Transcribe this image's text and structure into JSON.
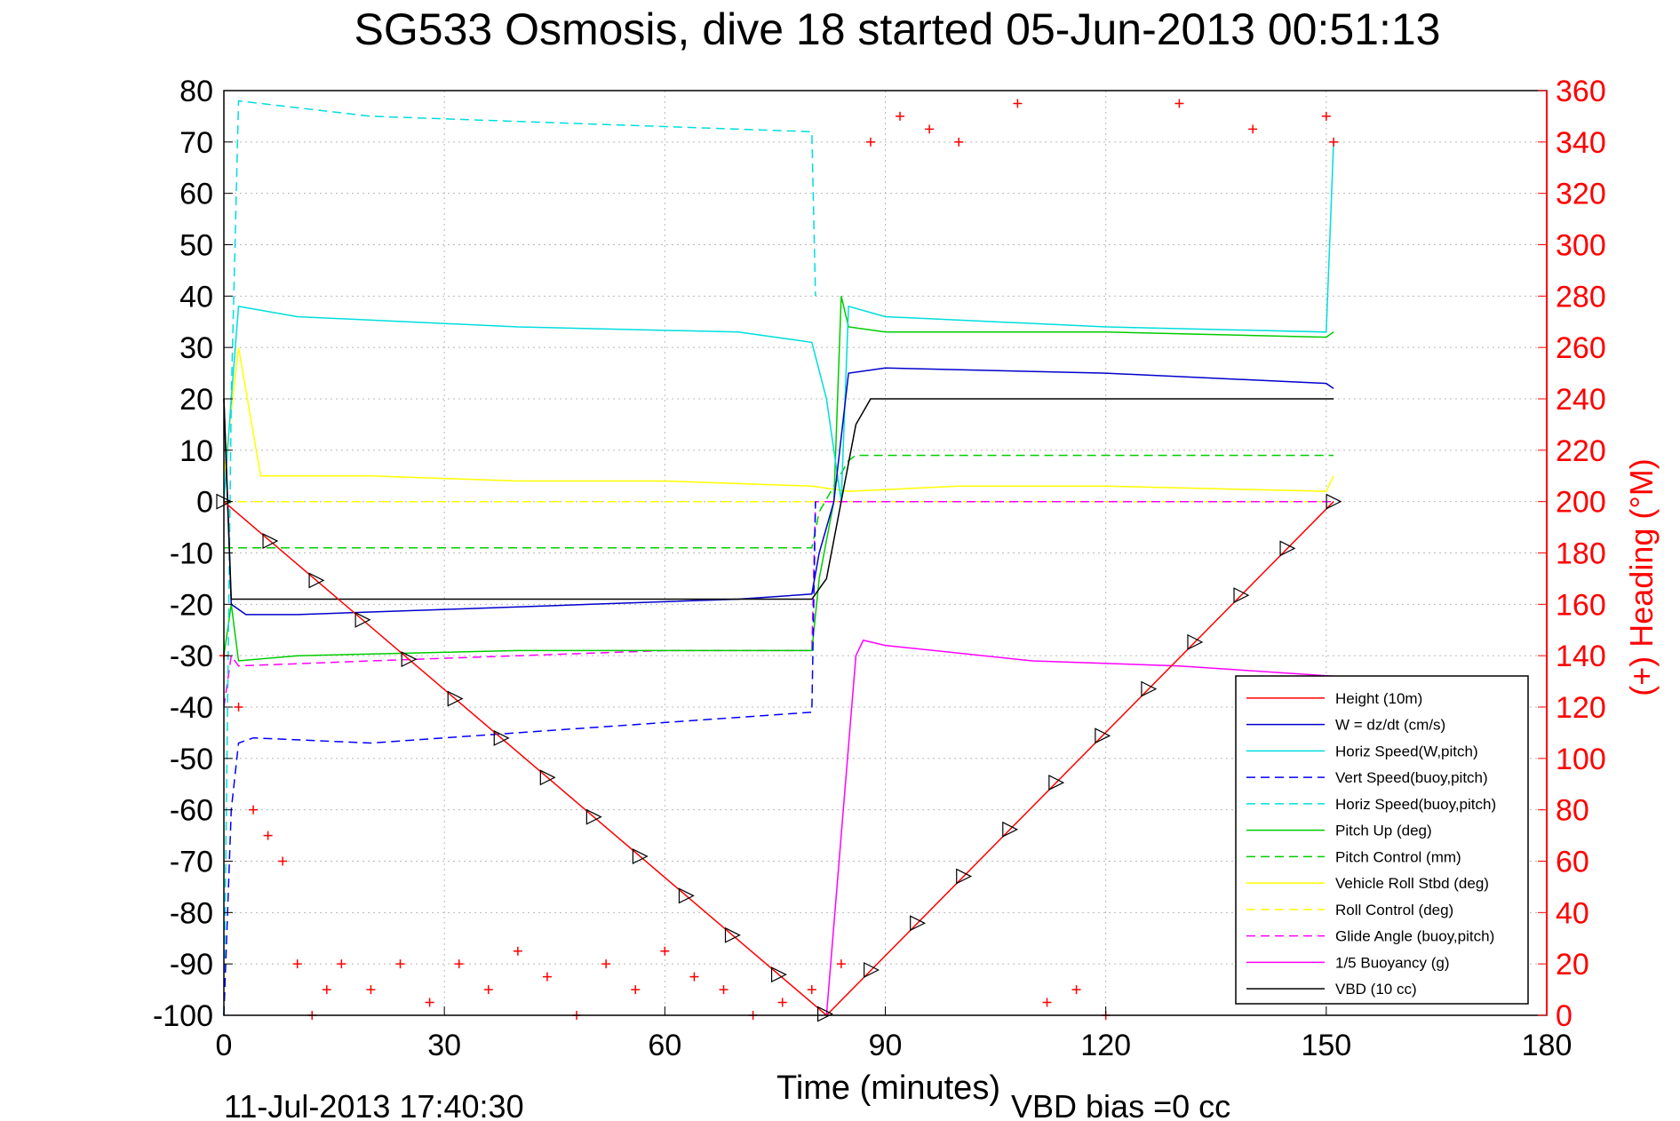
{
  "chart_data": {
    "type": "line",
    "title": "SG533 Osmosis, dive 18 started 05-Jun-2013 00:51:13",
    "xlabel": "Time (minutes)",
    "ylabel_right": "(+) Heading (°M)",
    "footer_left": "11-Jul-2013 17:40:30",
    "footer_right": "VBD bias =0 cc",
    "xlim": [
      0,
      180
    ],
    "ylim_left": [
      -100,
      80
    ],
    "ylim_right": [
      0,
      360
    ],
    "xticks": [
      "0",
      "30",
      "60",
      "90",
      "120",
      "150",
      "180"
    ],
    "yticks_left": [
      "80",
      "70",
      "60",
      "50",
      "40",
      "30",
      "20",
      "10",
      "0",
      "-10",
      "-20",
      "-30",
      "-40",
      "-50",
      "-60",
      "-70",
      "-80",
      "-90",
      "-100"
    ],
    "yticks_right": [
      "360",
      "340",
      "320",
      "300",
      "280",
      "260",
      "240",
      "220",
      "200",
      "180",
      "160",
      "140",
      "120",
      "100",
      "80",
      "60",
      "40",
      "20",
      "0"
    ],
    "grid": true,
    "legend_position": "lower-right",
    "colors": {
      "height": "#ff0000",
      "w": "#0000cc",
      "horiz_w": "#00dddd",
      "vert_buoy": "#0000ff",
      "horiz_buoy": "#00dddd",
      "pitch": "#00cc00",
      "pitch_ctrl": "#00cc00",
      "roll": "#ffff00",
      "roll_ctrl": "#ffff00",
      "glide": "#ff00ff",
      "buoy": "#ff00ff",
      "vbd": "#000000",
      "heading": "#ff0000",
      "right_axis": "#ff0000"
    },
    "series": [
      {
        "key": "height",
        "name": "Height (10m)",
        "style": "solid",
        "x": [
          0,
          82,
          151
        ],
        "y": [
          0,
          -100,
          0
        ]
      },
      {
        "key": "w",
        "name": "W = dz/dt (cm/s)",
        "style": "solid",
        "x": [
          0,
          1,
          3,
          10,
          30,
          50,
          70,
          80,
          81,
          83,
          85,
          90,
          120,
          150,
          151
        ],
        "y": [
          20,
          -20,
          -22,
          -22,
          -21,
          -20,
          -19,
          -18,
          -10,
          0,
          25,
          26,
          25,
          23,
          22
        ]
      },
      {
        "key": "horiz_w",
        "name": "Horiz Speed(W,pitch)",
        "style": "solid",
        "x": [
          0,
          1,
          2,
          10,
          40,
          70,
          80,
          82,
          84,
          85,
          90,
          120,
          150,
          151
        ],
        "y": [
          0,
          20,
          38,
          36,
          34,
          33,
          31,
          20,
          0,
          38,
          36,
          34,
          33,
          70
        ]
      },
      {
        "key": "vert_buoy",
        "name": "Vert Speed(buoy,pitch)",
        "style": "dashed",
        "x": [
          0,
          1,
          2,
          4,
          20,
          40,
          60,
          80,
          80.5
        ],
        "y": [
          -100,
          -60,
          -47,
          -46,
          -47,
          -45,
          -43,
          -41,
          0
        ]
      },
      {
        "key": "horiz_buoy",
        "name": "Horiz Speed(buoy,pitch)",
        "style": "dashed",
        "x": [
          0,
          1,
          2,
          20,
          40,
          60,
          80,
          80.5
        ],
        "y": [
          -100,
          20,
          78,
          75,
          74,
          73,
          72,
          40
        ]
      },
      {
        "key": "pitch",
        "name": "Pitch Up (deg)",
        "style": "solid",
        "x": [
          0,
          1,
          2,
          10,
          40,
          70,
          80,
          81,
          83,
          84,
          85,
          90,
          120,
          150,
          151
        ],
        "y": [
          -30,
          -20,
          -31,
          -30,
          -29,
          -29,
          -29,
          -15,
          0,
          40,
          34,
          33,
          33,
          32,
          33
        ]
      },
      {
        "key": "pitch_ctrl",
        "name": "Pitch Control (mm)",
        "style": "dashed",
        "x": [
          0,
          1,
          80,
          81,
          85,
          86,
          151
        ],
        "y": [
          -9,
          -9,
          -9,
          -2,
          8,
          9,
          9
        ]
      },
      {
        "key": "roll",
        "name": "Vehicle Roll Stbd (deg)",
        "style": "solid",
        "x": [
          0,
          2,
          5,
          10,
          20,
          40,
          60,
          80,
          85,
          100,
          120,
          150,
          151
        ],
        "y": [
          5,
          30,
          5,
          5,
          5,
          4,
          4,
          3,
          2,
          3,
          3,
          2,
          5
        ]
      },
      {
        "key": "roll_ctrl",
        "name": "Roll Control (deg)",
        "style": "dashed",
        "x": [
          0,
          2,
          151
        ],
        "y": [
          0,
          0,
          0
        ]
      },
      {
        "key": "glide",
        "name": "Glide Angle (buoy,pitch)",
        "style": "dashed",
        "x": [
          0,
          1,
          2,
          20,
          40,
          60,
          80,
          80.5,
          151
        ],
        "y": [
          -40,
          -30,
          -32,
          -31,
          -30,
          -29,
          -29,
          0,
          0
        ]
      },
      {
        "key": "buoy",
        "name": "1/5 Buoyancy (g)",
        "style": "solid",
        "x": [
          82,
          86,
          87,
          90,
          110,
          130,
          151
        ],
        "y": [
          -100,
          -30,
          -27,
          -28,
          -31,
          -32,
          -34
        ]
      },
      {
        "key": "vbd",
        "name": "VBD (10 cc)",
        "style": "solid",
        "x": [
          0,
          1,
          80,
          82,
          86,
          88,
          151
        ],
        "y": [
          20,
          -19,
          -19,
          -15,
          15,
          20,
          20
        ]
      },
      {
        "key": "heading",
        "name": "",
        "style": "markers",
        "x": [
          0,
          2,
          4,
          6,
          8,
          10,
          12,
          14,
          16,
          20,
          24,
          28,
          32,
          36,
          40,
          44,
          48,
          52,
          56,
          60,
          64,
          68,
          72,
          76,
          80,
          84,
          88,
          92,
          96,
          100,
          108,
          112,
          116,
          120,
          130,
          140,
          150,
          151
        ],
        "y_right": [
          140,
          120,
          80,
          70,
          60,
          20,
          0,
          10,
          20,
          10,
          20,
          5,
          20,
          10,
          25,
          15,
          0,
          20,
          10,
          25,
          15,
          10,
          0,
          5,
          10,
          20,
          340,
          350,
          345,
          340,
          355,
          5,
          10,
          0,
          355,
          345,
          350,
          340
        ]
      }
    ]
  }
}
